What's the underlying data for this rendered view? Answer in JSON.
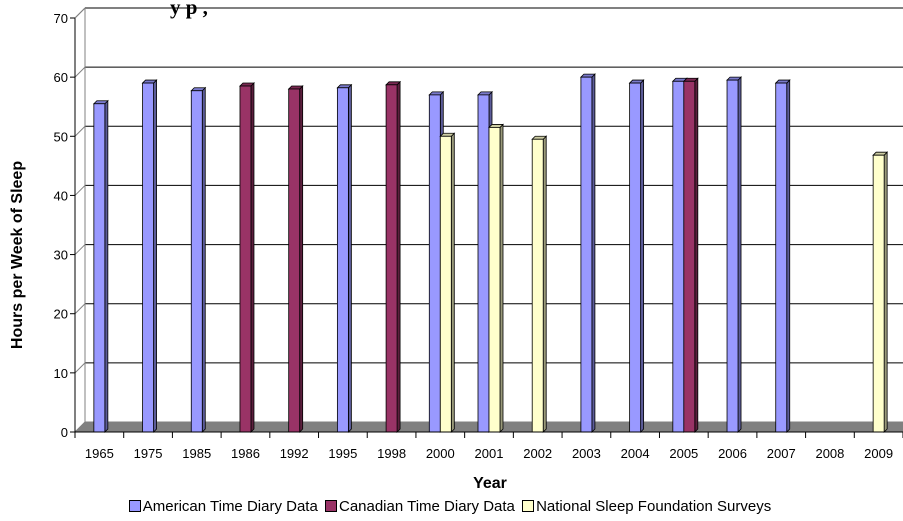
{
  "chart_data": {
    "type": "bar",
    "title": "y                                                    p                                    ,",
    "xlabel": "Year",
    "ylabel": "Hours per Week of Sleep",
    "ylim": [
      0,
      70
    ],
    "yticks": [
      0,
      10,
      20,
      30,
      40,
      50,
      60,
      70
    ],
    "grid": true,
    "legend_position": "bottom",
    "categories": [
      "1965",
      "1975",
      "1985",
      "1986",
      "1992",
      "1995",
      "1998",
      "2000",
      "2001",
      "2002",
      "2003",
      "2004",
      "2005",
      "2006",
      "2007",
      "2008",
      "2009"
    ],
    "series": [
      {
        "name": "American Time Diary Data",
        "color": "#9999FF",
        "values": [
          55.5,
          59,
          57.7,
          null,
          null,
          58.2,
          null,
          57,
          57,
          null,
          60,
          59,
          59.3,
          59.5,
          59,
          null,
          null
        ]
      },
      {
        "name": "Canadian Time Diary Data",
        "color": "#993366",
        "values": [
          null,
          null,
          null,
          58.5,
          58,
          null,
          58.7,
          null,
          null,
          null,
          null,
          null,
          59.3,
          null,
          null,
          null,
          null
        ]
      },
      {
        "name": "National Sleep Foundation Surveys",
        "color": "#FFFFCC",
        "values": [
          null,
          null,
          null,
          null,
          null,
          null,
          null,
          50,
          51.5,
          49.5,
          null,
          null,
          null,
          null,
          null,
          null,
          46.8
        ]
      }
    ]
  }
}
